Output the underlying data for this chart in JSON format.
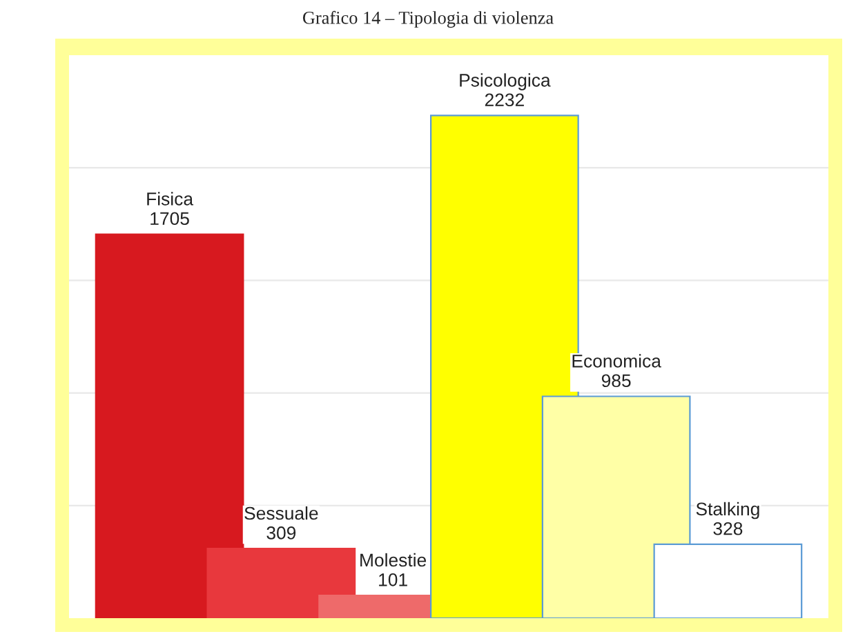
{
  "chart_data": {
    "type": "bar",
    "title": "Grafico 14 – Tipologia di violenza",
    "categories": [
      "Fisica",
      "Sessuale",
      "Molestie",
      "Psicologica",
      "Economica",
      "Stalking"
    ],
    "values": [
      1705,
      309,
      101,
      2232,
      985,
      328
    ],
    "colors": [
      "#d7191f",
      "#e8383d",
      "#ee6a6a",
      "#ffff00",
      "#ffffa6",
      "#ffffff"
    ],
    "data_labels": true,
    "ylim": [
      0,
      2500
    ],
    "yticks": [
      {
        "value": 500,
        "label": null
      },
      {
        "value": 1000,
        "label": null
      },
      {
        "value": 1500,
        "label": null
      },
      {
        "value": 2000,
        "label": null
      }
    ],
    "grid": "y",
    "legend": false
  }
}
